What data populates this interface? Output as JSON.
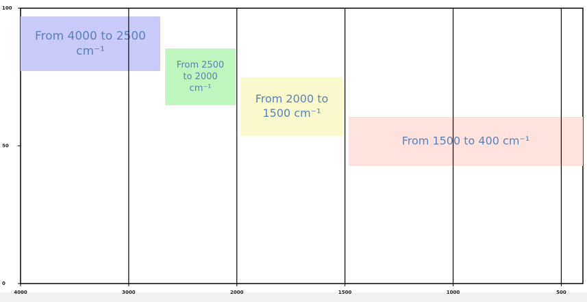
{
  "chart_data": {
    "type": "spectrum-regions",
    "xlim": [
      4000,
      400
    ],
    "xticks": [
      4000,
      3000,
      2000,
      1500,
      1000,
      500
    ],
    "ylim": [
      0,
      100
    ],
    "yticks": [
      0,
      50,
      100
    ],
    "grid": true,
    "annotations": [
      {
        "lines": [
          "From 4000 to 2500",
          "cm⁻¹"
        ],
        "color": "#c9c9fa"
      },
      {
        "lines": [
          "From 2500",
          "to  2000",
          "cm⁻¹"
        ],
        "color": "#bdf7bd"
      },
      {
        "lines": [
          "From 2000 to",
          "1500 cm⁻¹"
        ],
        "color": "#fafacd"
      },
      {
        "lines": [
          "From 1500 to 400 cm⁻¹"
        ],
        "color": "#fde2de"
      }
    ]
  }
}
